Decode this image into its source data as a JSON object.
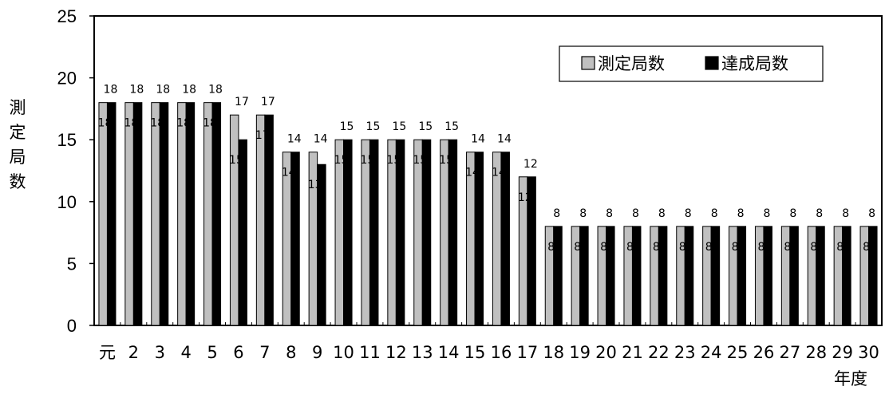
{
  "chart_data": {
    "type": "bar",
    "title": "",
    "ylabel": "測定局数",
    "xlabel": "年度",
    "ylim": [
      0,
      25
    ],
    "yticks": [
      0,
      5,
      10,
      15,
      20,
      25
    ],
    "grid": false,
    "legend_placement": "top-right",
    "categories": [
      "元",
      "2",
      "3",
      "4",
      "5",
      "6",
      "7",
      "8",
      "9",
      "10",
      "11",
      "12",
      "13",
      "14",
      "15",
      "16",
      "17",
      "18",
      "19",
      "20",
      "21",
      "22",
      "23",
      "24",
      "25",
      "26",
      "27",
      "28",
      "29",
      "30"
    ],
    "series": [
      {
        "name": "測定局数",
        "color": "#c0c0c0",
        "values": [
          18,
          18,
          18,
          18,
          18,
          17,
          17,
          14,
          14,
          15,
          15,
          15,
          15,
          15,
          14,
          14,
          12,
          8,
          8,
          8,
          8,
          8,
          8,
          8,
          8,
          8,
          8,
          8,
          8,
          8
        ]
      },
      {
        "name": "達成局数",
        "color": "#000000",
        "values": [
          18,
          18,
          18,
          18,
          18,
          15,
          17,
          14,
          13,
          15,
          15,
          15,
          15,
          15,
          14,
          14,
          12,
          8,
          8,
          8,
          8,
          8,
          8,
          8,
          8,
          8,
          8,
          8,
          8,
          8
        ]
      }
    ]
  }
}
